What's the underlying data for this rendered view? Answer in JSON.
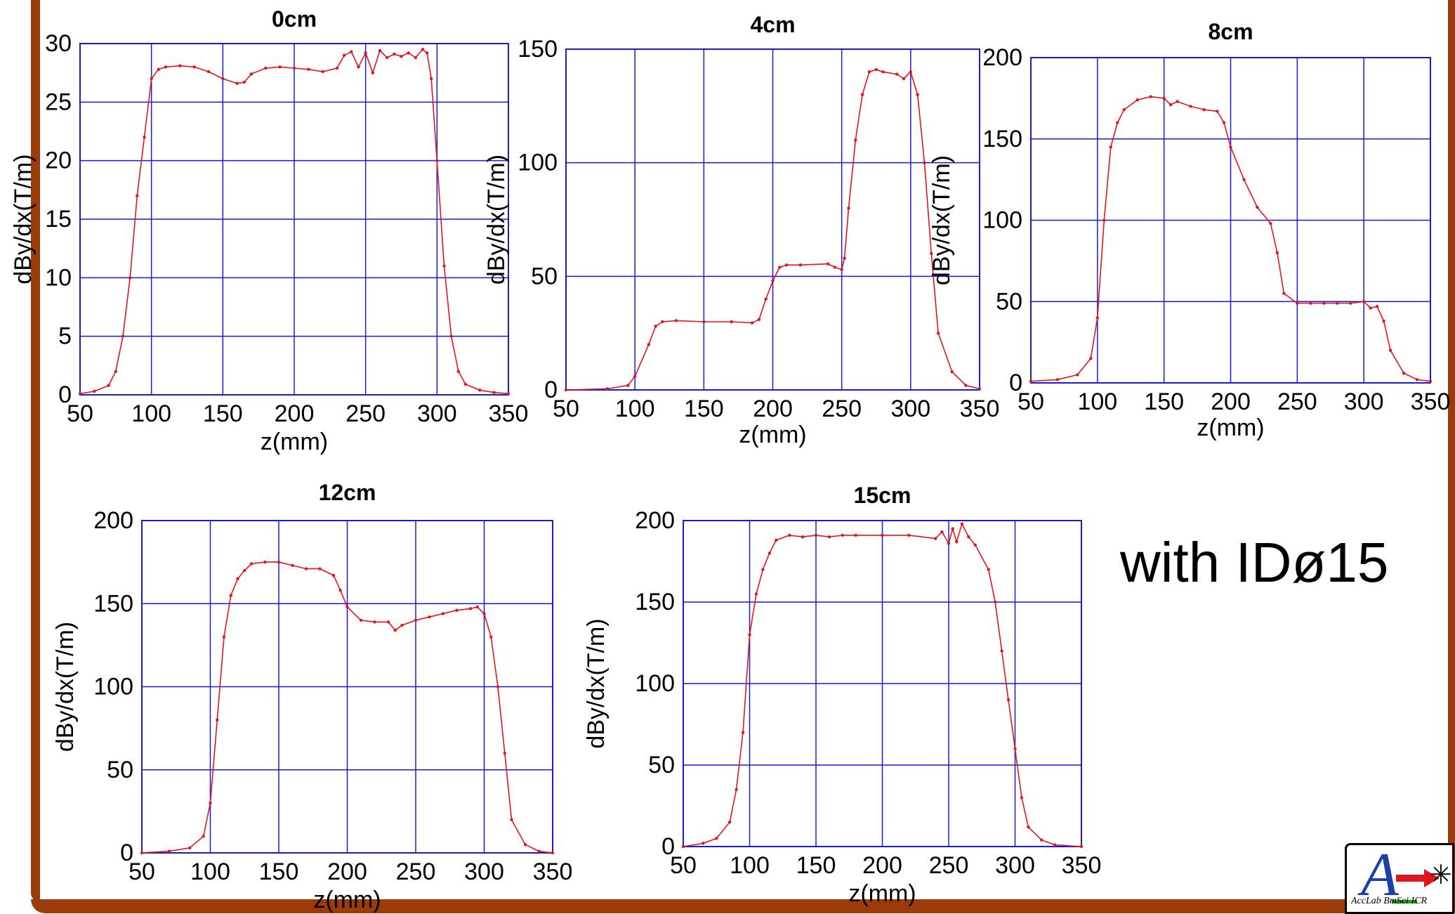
{
  "annotation": "with IDø15",
  "logo": {
    "letter": "A",
    "caption": "AccLab  BmSci  ICR"
  },
  "colors": {
    "frame": "#9b3a0b",
    "grid": "#1a1adb",
    "axes": "#1a1adb",
    "series": "#e0161e"
  },
  "chart_data": [
    {
      "type": "line",
      "title": "0cm",
      "xlabel": "z(mm)",
      "ylabel": "dBy/dx(T/m)",
      "xlim": [
        50,
        350
      ],
      "ylim": [
        0,
        30
      ],
      "xticks": [
        50,
        100,
        150,
        200,
        250,
        300,
        350
      ],
      "yticks": [
        0,
        5,
        10,
        15,
        20,
        25,
        30
      ],
      "grid": true,
      "series": [
        {
          "x": [
            50,
            60,
            70,
            75,
            80,
            85,
            90,
            95,
            100,
            105,
            110,
            120,
            130,
            140,
            150,
            160,
            165,
            170,
            180,
            190,
            200,
            210,
            220,
            230,
            235,
            240,
            245,
            250,
            255,
            260,
            265,
            270,
            275,
            280,
            285,
            290,
            293,
            296,
            300,
            305,
            310,
            315,
            320,
            330,
            340,
            350
          ],
          "y": [
            0.1,
            0.3,
            0.8,
            2,
            5,
            10,
            17,
            22,
            27,
            27.8,
            28,
            28.1,
            28,
            27.6,
            27,
            26.6,
            26.7,
            27.4,
            27.9,
            28,
            27.9,
            27.8,
            27.6,
            27.9,
            29,
            29.3,
            28,
            29.2,
            27.5,
            29.4,
            28.8,
            29.1,
            28.9,
            29.2,
            28.8,
            29.5,
            29.2,
            27,
            20,
            11,
            5,
            2,
            0.9,
            0.4,
            0.2,
            0.1
          ]
        }
      ]
    },
    {
      "type": "line",
      "title": "4cm",
      "xlabel": "z(mm)",
      "ylabel": "dBy/dx(T/m)",
      "xlim": [
        50,
        350
      ],
      "ylim": [
        0,
        150
      ],
      "xticks": [
        50,
        100,
        150,
        200,
        250,
        300,
        350
      ],
      "yticks": [
        0,
        50,
        100,
        150
      ],
      "grid": true,
      "series": [
        {
          "x": [
            50,
            80,
            95,
            100,
            110,
            115,
            120,
            130,
            150,
            170,
            185,
            190,
            195,
            200,
            205,
            210,
            220,
            240,
            245,
            250,
            252,
            255,
            260,
            265,
            270,
            275,
            280,
            290,
            295,
            300,
            305,
            310,
            315,
            320,
            330,
            340,
            350
          ],
          "y": [
            0,
            0.5,
            2,
            6,
            20,
            28,
            30,
            30.5,
            30,
            30,
            29.5,
            31,
            40,
            48,
            54,
            55,
            55,
            55.5,
            54,
            53,
            58,
            80,
            110,
            130,
            140,
            141,
            140,
            139,
            137,
            140,
            130,
            100,
            60,
            25,
            8,
            2,
            0.5
          ]
        }
      ]
    },
    {
      "type": "line",
      "title": "8cm",
      "xlabel": "z(mm)",
      "ylabel": "dBy/dx(T/m)",
      "xlim": [
        50,
        350
      ],
      "ylim": [
        0,
        200
      ],
      "xticks": [
        50,
        100,
        150,
        200,
        250,
        300,
        350
      ],
      "yticks": [
        0,
        50,
        100,
        150,
        200
      ],
      "grid": true,
      "series": [
        {
          "x": [
            50,
            70,
            85,
            95,
            100,
            105,
            110,
            115,
            120,
            130,
            140,
            150,
            155,
            160,
            170,
            180,
            190,
            195,
            200,
            210,
            220,
            230,
            235,
            240,
            250,
            260,
            270,
            280,
            290,
            300,
            305,
            310,
            315,
            320,
            330,
            340,
            350
          ],
          "y": [
            1,
            2,
            5,
            15,
            40,
            100,
            145,
            160,
            168,
            174,
            176,
            175,
            171,
            173,
            170,
            168,
            167,
            160,
            145,
            125,
            108,
            98,
            80,
            55,
            49,
            49,
            49,
            49,
            49,
            50,
            46,
            47,
            38,
            20,
            6,
            2,
            1
          ]
        }
      ]
    },
    {
      "type": "line",
      "title": "12cm",
      "xlabel": "z(mm)",
      "ylabel": "dBy/dx(T/m)",
      "xlim": [
        50,
        350
      ],
      "ylim": [
        0,
        200
      ],
      "xticks": [
        50,
        100,
        150,
        200,
        250,
        300,
        350
      ],
      "yticks": [
        0,
        50,
        100,
        150,
        200
      ],
      "grid": true,
      "series": [
        {
          "x": [
            50,
            70,
            85,
            95,
            100,
            105,
            110,
            115,
            120,
            125,
            130,
            140,
            150,
            160,
            170,
            180,
            190,
            195,
            200,
            210,
            220,
            230,
            235,
            240,
            250,
            260,
            270,
            280,
            290,
            295,
            300,
            305,
            310,
            315,
            320,
            330,
            340,
            350
          ],
          "y": [
            0,
            1,
            3,
            10,
            30,
            80,
            130,
            155,
            165,
            170,
            174,
            175,
            175,
            173,
            171,
            171,
            167,
            158,
            148,
            140,
            139,
            139,
            134,
            137,
            140,
            142,
            144,
            146,
            147,
            148,
            144,
            130,
            100,
            60,
            20,
            5,
            1,
            0
          ]
        }
      ]
    },
    {
      "type": "line",
      "title": "15cm",
      "xlabel": "z(mm)",
      "ylabel": "dBy/dx(T/m)",
      "xlim": [
        50,
        350
      ],
      "ylim": [
        0,
        200
      ],
      "xticks": [
        50,
        100,
        150,
        200,
        250,
        300,
        350
      ],
      "yticks": [
        0,
        50,
        100,
        150,
        200
      ],
      "grid": true,
      "series": [
        {
          "x": [
            50,
            65,
            75,
            85,
            90,
            95,
            100,
            105,
            110,
            115,
            120,
            130,
            140,
            150,
            160,
            170,
            180,
            200,
            220,
            240,
            245,
            250,
            253,
            256,
            260,
            265,
            270,
            280,
            285,
            290,
            295,
            300,
            305,
            310,
            320,
            330,
            350
          ],
          "y": [
            0,
            2,
            5,
            15,
            35,
            70,
            130,
            155,
            170,
            180,
            188,
            191,
            190,
            191,
            190,
            191,
            191,
            191,
            191,
            189,
            193,
            186,
            195,
            187,
            198,
            190,
            185,
            170,
            150,
            120,
            90,
            60,
            30,
            12,
            4,
            1,
            0
          ]
        }
      ]
    }
  ]
}
